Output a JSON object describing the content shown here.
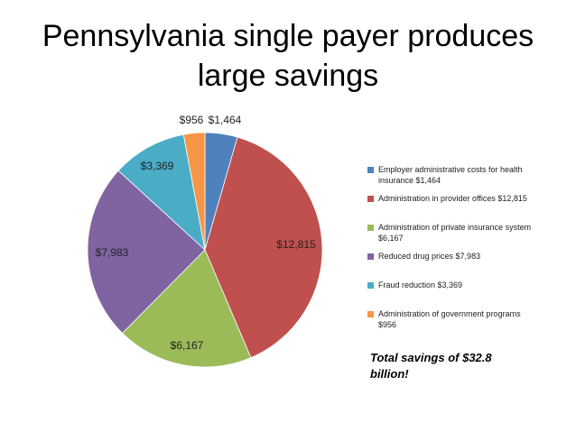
{
  "title_line1": "Pennsylvania single payer produces",
  "title_line2": "large savings",
  "chart_data": {
    "type": "pie",
    "title": "Pennsylvania single payer produces large savings",
    "slices": [
      {
        "name": "Employer administrative costs for health insurance",
        "value": 1464,
        "label": "$1,464",
        "legend": "Employer administrative costs for health insurance $1,464",
        "color": "#4F81BD"
      },
      {
        "name": "Administration in provider offices",
        "value": 12815,
        "label": "$12,815",
        "legend": "Administration in provider offices $12,815",
        "color": "#C0504D"
      },
      {
        "name": "Administration of private insurance system",
        "value": 6167,
        "label": "$6,167",
        "legend": "Administration of private insurance system $6,167",
        "color": "#9BBB59"
      },
      {
        "name": "Reduced drug prices",
        "value": 7983,
        "label": "$7,983",
        "legend": "Reduced drug prices $7,983",
        "color": "#8064A2"
      },
      {
        "name": "Fraud reduction",
        "value": 3369,
        "label": "$3,369",
        "legend": "Fraud reduction $3,369",
        "color": "#4BACC6"
      },
      {
        "name": "Administration of government programs",
        "value": 956,
        "label": "$956",
        "legend": "Administration of government programs $956",
        "color": "#F79646"
      }
    ],
    "legend_position": "right"
  },
  "total_text": "Total savings of $32.8 billion!"
}
